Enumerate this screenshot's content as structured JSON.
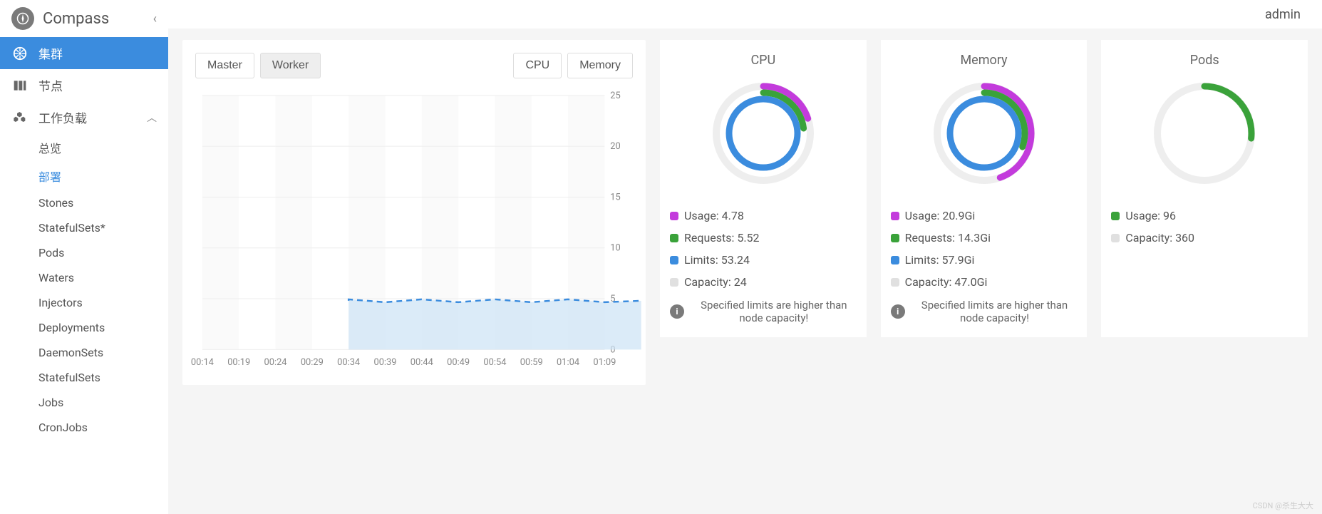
{
  "app": {
    "title": "Compass",
    "user": "admin"
  },
  "sidebar": {
    "items": [
      {
        "id": "cluster",
        "label": "集群",
        "icon": "wheel"
      },
      {
        "id": "nodes",
        "label": "节点",
        "icon": "servers"
      },
      {
        "id": "workloads",
        "label": "工作负载",
        "icon": "cubes",
        "expanded": true
      }
    ],
    "subitems": [
      {
        "label": "总览"
      },
      {
        "label": "部署",
        "selected": true
      },
      {
        "label": "Stones"
      },
      {
        "label": "StatefulSets*"
      },
      {
        "label": "Pods"
      },
      {
        "label": "Waters"
      },
      {
        "label": "Injectors"
      },
      {
        "label": "Deployments"
      },
      {
        "label": "DaemonSets"
      },
      {
        "label": "StatefulSets"
      },
      {
        "label": "Jobs"
      },
      {
        "label": "CronJobs"
      }
    ]
  },
  "chart": {
    "toggles_left": [
      {
        "label": "Master",
        "active": false
      },
      {
        "label": "Worker",
        "active": true
      }
    ],
    "toggles_right": [
      {
        "label": "CPU",
        "active": false
      },
      {
        "label": "Memory",
        "active": false
      }
    ],
    "xticks": [
      "00:14",
      "00:19",
      "00:24",
      "00:29",
      "00:34",
      "00:39",
      "00:44",
      "00:49",
      "00:54",
      "00:59",
      "01:04",
      "01:09"
    ],
    "yticks": [
      0,
      5,
      10,
      15,
      20,
      25
    ],
    "ylim": [
      0,
      25
    ],
    "series_value": 4.8,
    "series_start_index": 4,
    "colors": {
      "area": "#cce3f5",
      "line": "#3b8cde",
      "grid": "#eeeeee",
      "axis_text": "#888888"
    }
  },
  "gauges": [
    {
      "title": "CPU",
      "rings": [
        {
          "color": "#c33bdc",
          "fraction": 0.199,
          "radius": 66
        },
        {
          "color": "#3aa23a",
          "fraction": 0.23,
          "radius": 57
        },
        {
          "color": "#3b8cde",
          "fraction": 1.0,
          "radius": 48
        }
      ],
      "legend": [
        {
          "color": "#c33bdc",
          "label": "Usage: 4.78"
        },
        {
          "color": "#3aa23a",
          "label": "Requests: 5.52"
        },
        {
          "color": "#3b8cde",
          "label": "Limits: 53.24"
        },
        {
          "color": "#e0e0e0",
          "label": "Capacity: 24"
        }
      ],
      "warning": "Specified limits are higher than node capacity!"
    },
    {
      "title": "Memory",
      "rings": [
        {
          "color": "#c33bdc",
          "fraction": 0.445,
          "radius": 66
        },
        {
          "color": "#3aa23a",
          "fraction": 0.304,
          "radius": 57
        },
        {
          "color": "#3b8cde",
          "fraction": 1.0,
          "radius": 48
        }
      ],
      "legend": [
        {
          "color": "#c33bdc",
          "label": "Usage: 20.9Gi"
        },
        {
          "color": "#3aa23a",
          "label": "Requests: 14.3Gi"
        },
        {
          "color": "#3b8cde",
          "label": "Limits: 57.9Gi"
        },
        {
          "color": "#e0e0e0",
          "label": "Capacity: 47.0Gi"
        }
      ],
      "warning": "Specified limits are higher than node capacity!"
    },
    {
      "title": "Pods",
      "rings": [
        {
          "color": "#3aa23a",
          "fraction": 0.267,
          "radius": 66
        }
      ],
      "legend": [
        {
          "color": "#3aa23a",
          "label": "Usage: 96"
        },
        {
          "color": "#e0e0e0",
          "label": "Capacity: 360"
        }
      ]
    }
  ],
  "watermark": "CSDN @杀生大大"
}
